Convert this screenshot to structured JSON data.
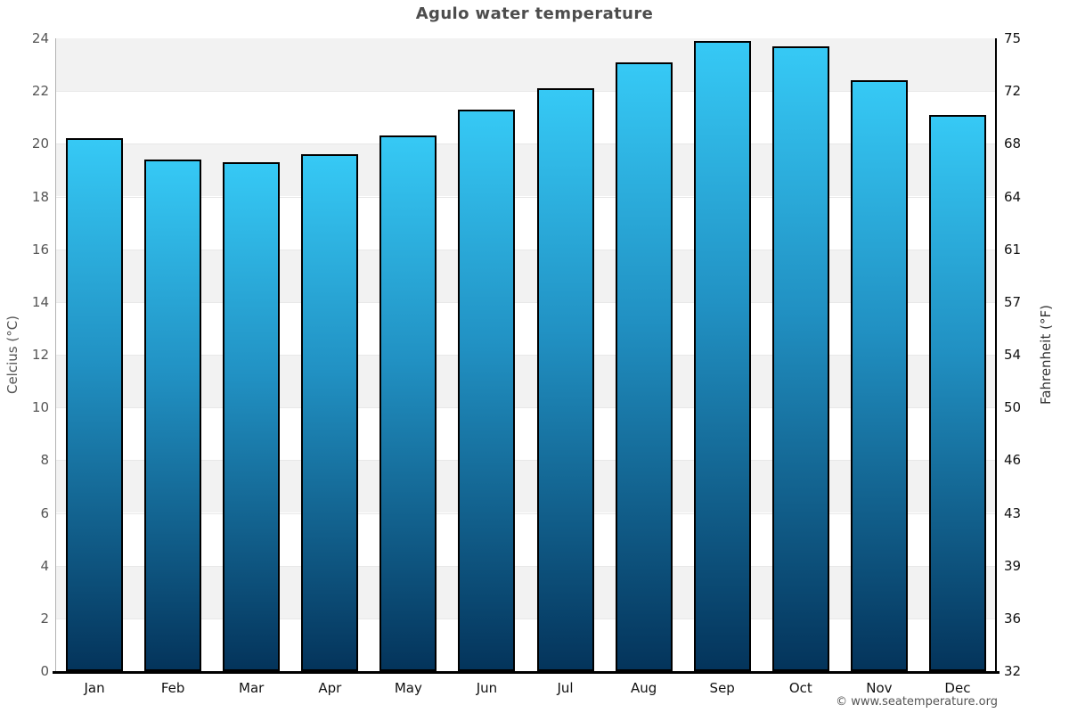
{
  "title": "Agulo water temperature",
  "footer": "© www.seatemperature.org",
  "axes": {
    "left_label": "Celcius (°C)",
    "right_label": "Fahrenheit (°F)",
    "celsius_ticks": [
      24,
      22,
      20,
      18,
      16,
      14,
      12,
      10,
      8,
      6,
      4,
      2,
      0
    ],
    "fahrenheit_ticks": [
      75,
      72,
      68,
      64,
      61,
      57,
      54,
      50,
      46,
      43,
      39,
      36,
      32
    ]
  },
  "chart_data": {
    "type": "bar",
    "title": "Agulo water temperature",
    "categories": [
      "Jan",
      "Feb",
      "Mar",
      "Apr",
      "May",
      "Jun",
      "Jul",
      "Aug",
      "Sep",
      "Oct",
      "Nov",
      "Dec"
    ],
    "values": [
      20.2,
      19.4,
      19.3,
      19.6,
      20.3,
      21.3,
      22.1,
      23.1,
      23.9,
      23.7,
      22.4,
      21.1
    ],
    "unit": "°C",
    "ylabel": "Celcius (°C)",
    "y2label": "Fahrenheit (°F)",
    "ylim": [
      0,
      24
    ],
    "tick_step_c": 2,
    "grid": "alternating horizontal bands, shaded from 22-24 downward every other 2°C",
    "legend": "none"
  },
  "colors": {
    "title_text": "#4d4d4d",
    "tick_text": "#555555",
    "tick_right_text": "#111111",
    "month_text": "#111111",
    "axis_title_left_text": "#555555",
    "axis_title_right_text": "#333333",
    "footer_text": "#555555",
    "band_shaded": "#f2f2f2",
    "band_plain": "#ffffff",
    "gridline": "#e8e8e8",
    "axis_left_line": "#b3b3b3",
    "axis_right_line": "#000000",
    "baseline": "#000000",
    "bar_border": "#000000",
    "bar_gradient_top": "#36c9f5",
    "bar_gradient_mid": "#2191c3",
    "bar_gradient_bottom": "#04345b"
  }
}
